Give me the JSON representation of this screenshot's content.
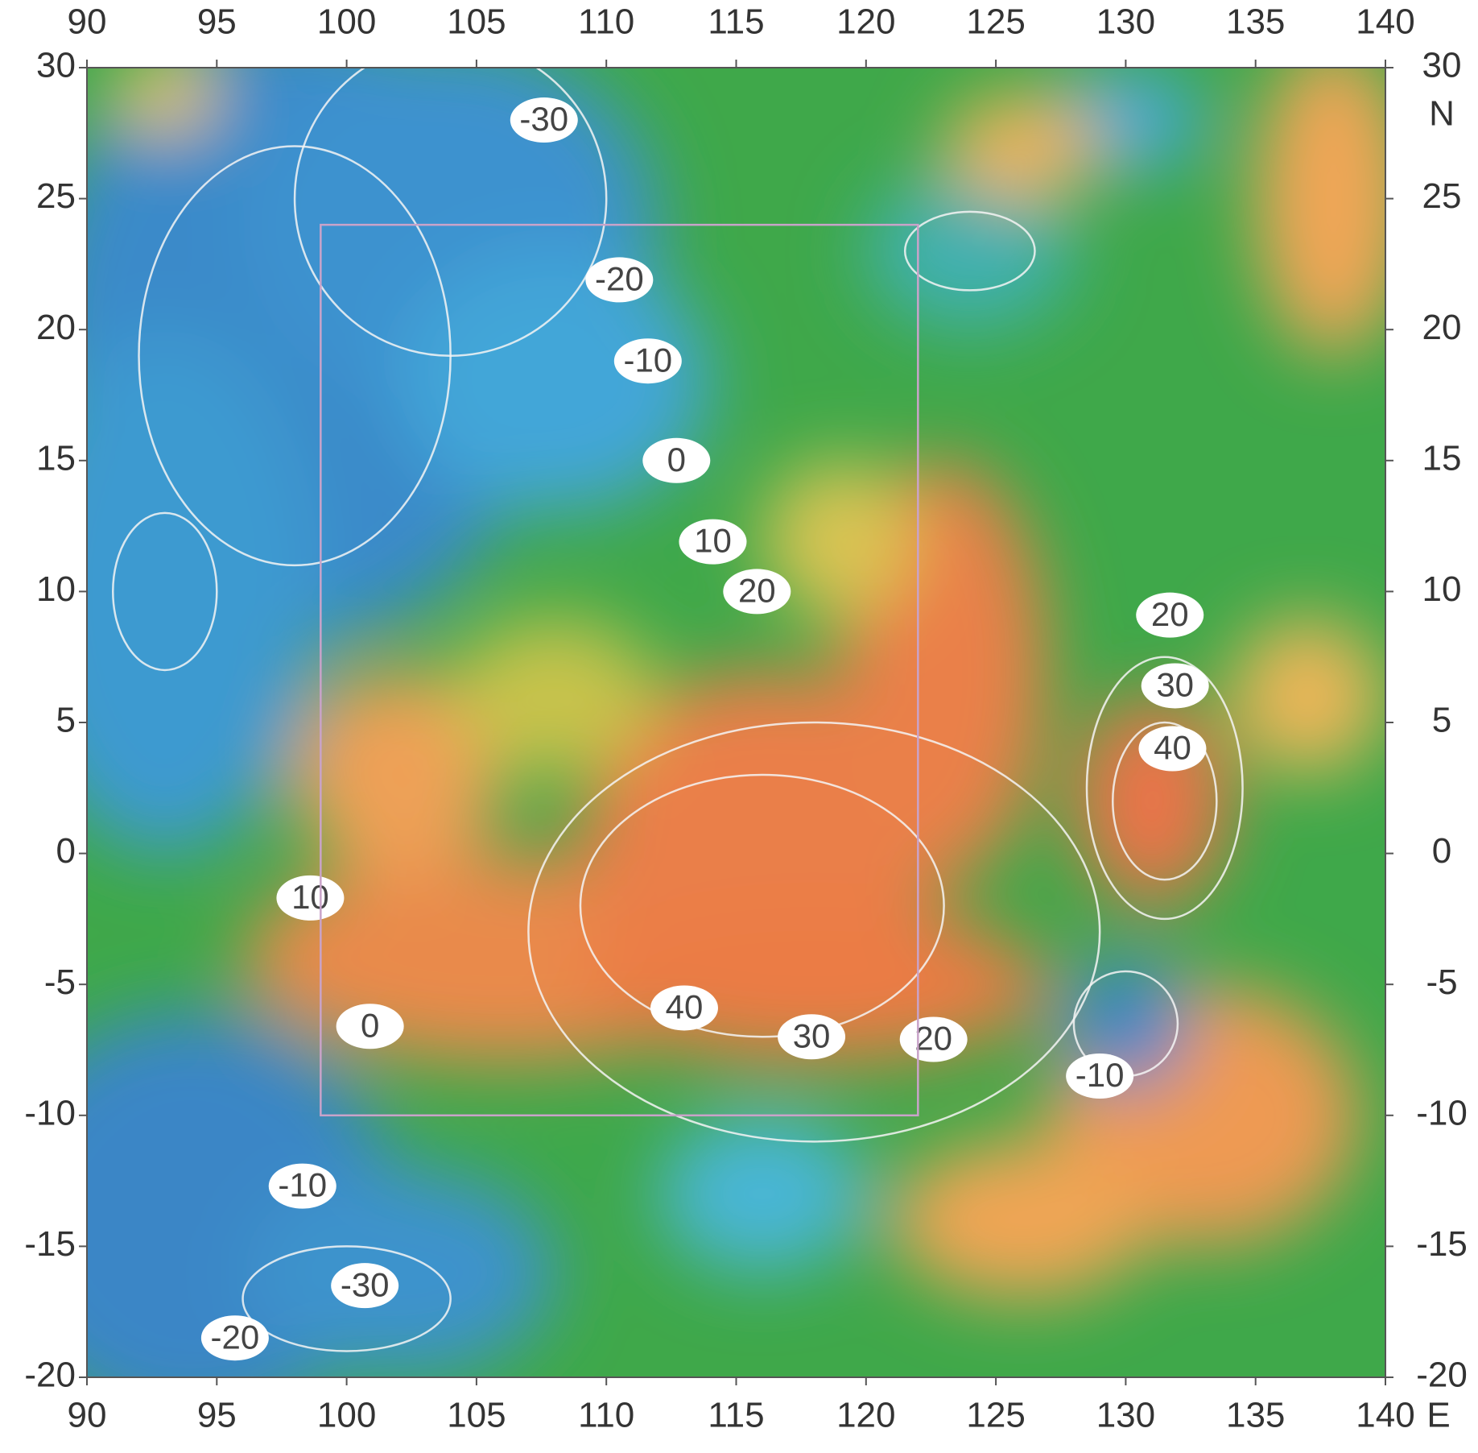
{
  "map": {
    "xlim": [
      90,
      140
    ],
    "ylim": [
      -20,
      30
    ],
    "xticks": [
      90,
      95,
      100,
      105,
      110,
      115,
      120,
      125,
      130,
      135,
      140
    ],
    "yticks": [
      -20,
      -15,
      -10,
      -5,
      0,
      5,
      10,
      15,
      20,
      25,
      30
    ],
    "x_unit": "E",
    "y_unit": "N",
    "box": {
      "lon": [
        99,
        122
      ],
      "lat": [
        -10,
        24
      ]
    },
    "contour_labels": [
      {
        "label": -30,
        "lon": 107.6,
        "lat": 28.0
      },
      {
        "label": -20,
        "lon": 110.5,
        "lat": 21.9
      },
      {
        "label": -10,
        "lon": 111.6,
        "lat": 18.8
      },
      {
        "label": 0,
        "lon": 112.7,
        "lat": 15.0
      },
      {
        "label": 10,
        "lon": 114.1,
        "lat": 11.9
      },
      {
        "label": 20,
        "lon": 115.8,
        "lat": 10.0
      },
      {
        "label": 20,
        "lon": 131.7,
        "lat": 9.1
      },
      {
        "label": 30,
        "lon": 131.9,
        "lat": 6.4
      },
      {
        "label": 40,
        "lon": 131.8,
        "lat": 4.0
      },
      {
        "label": 10,
        "lon": 98.6,
        "lat": -1.7
      },
      {
        "label": 40,
        "lon": 113.0,
        "lat": -5.9
      },
      {
        "label": 30,
        "lon": 117.9,
        "lat": -7.0
      },
      {
        "label": 20,
        "lon": 122.6,
        "lat": -7.1
      },
      {
        "label": 0,
        "lon": 100.9,
        "lat": -6.6
      },
      {
        "label": -10,
        "lon": 129.0,
        "lat": -8.5
      },
      {
        "label": -10,
        "lon": 98.3,
        "lat": -12.7
      },
      {
        "label": -30,
        "lon": 100.7,
        "lat": -16.5
      },
      {
        "label": -20,
        "lon": 95.7,
        "lat": -18.5
      }
    ]
  }
}
